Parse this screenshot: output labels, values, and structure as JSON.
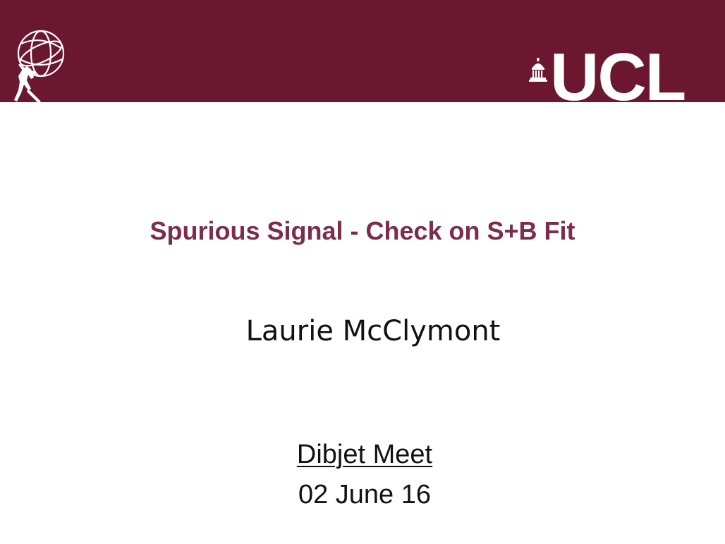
{
  "header": {
    "brand_color": "#6b1730",
    "left_logo_icon": "atlas-figure-globe-icon",
    "right_logo_icon": "ucl-portico-icon",
    "right_logo_text": "UCL"
  },
  "slide": {
    "title": "Spurious Signal - Check on S+B Fit",
    "title_color": "#7d2d4a",
    "author": "Laurie McClymont",
    "meeting": "Dibjet Meet",
    "date": "02 June 16"
  }
}
